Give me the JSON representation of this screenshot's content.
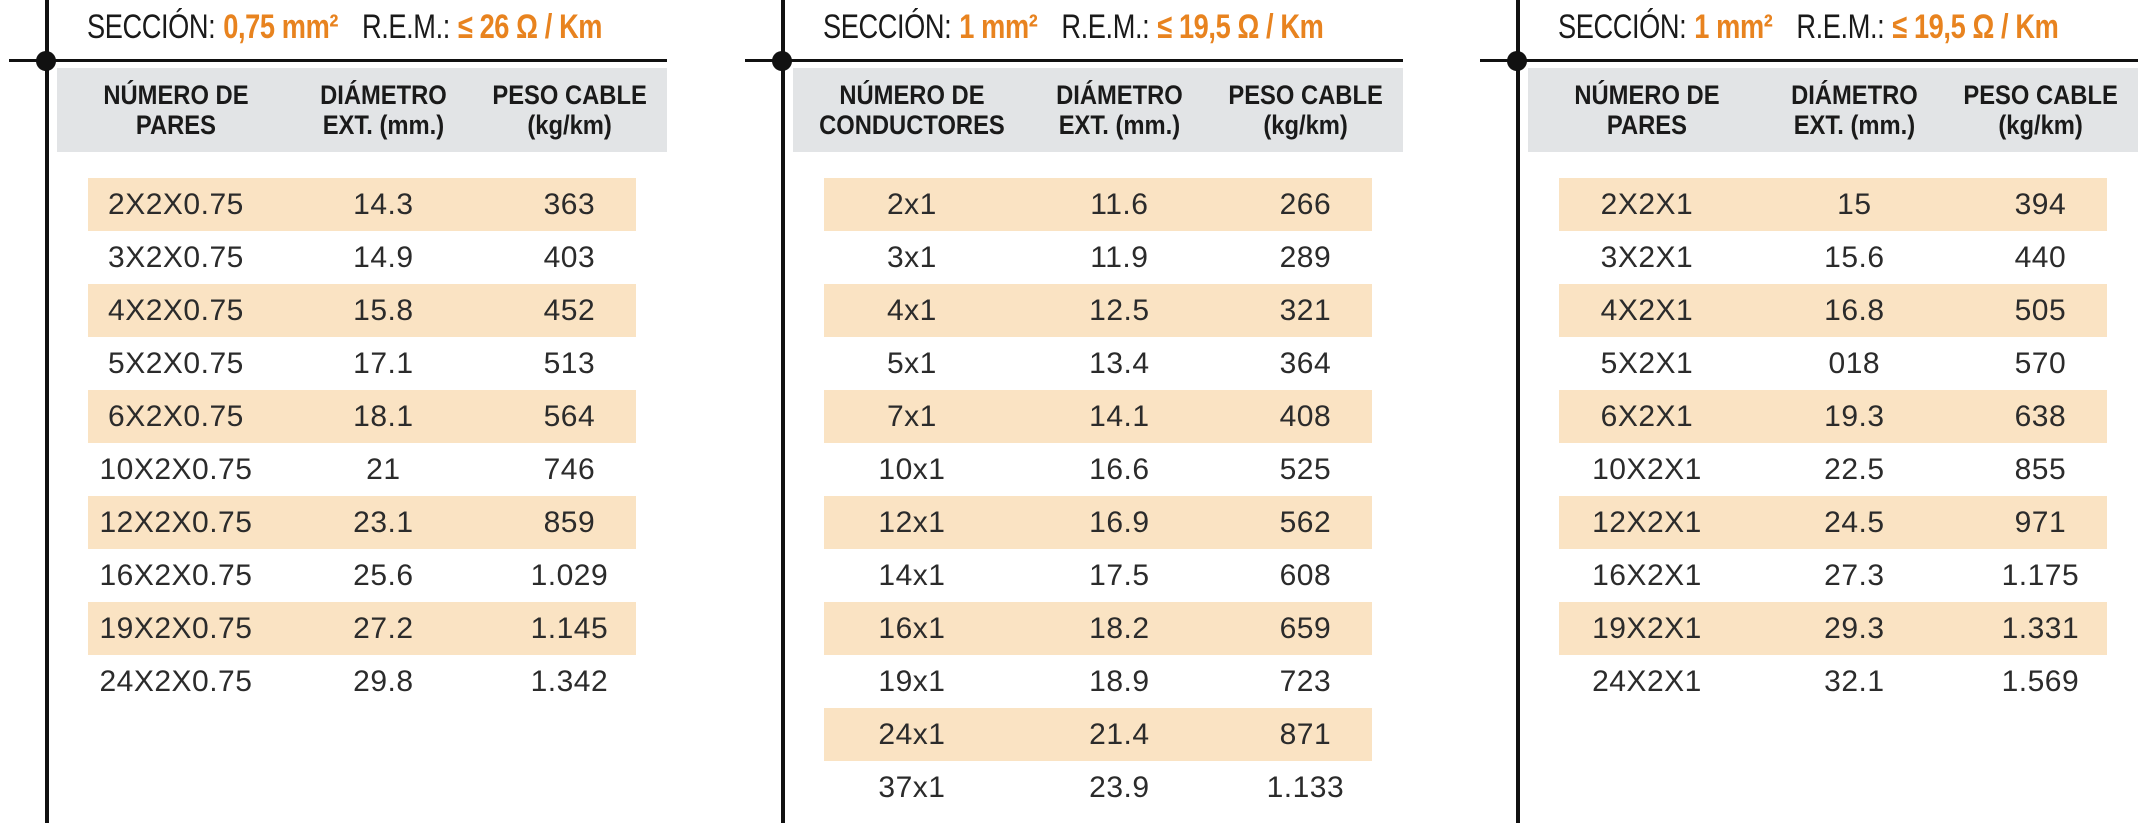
{
  "colors": {
    "orange": "#e8831f",
    "row_alt_bg": "#fae3c3",
    "header_bg": "#e2e4e6",
    "rule": "#111111"
  },
  "tables": [
    {
      "title": {
        "section_label": "SECCIÓN:",
        "section_value": "0,75 mm²",
        "rem_label": "R.E.M.:",
        "rem_value": "≤ 26 Ω / Km"
      },
      "columns": [
        {
          "line1": "NÚMERO DE",
          "line2": "PARES"
        },
        {
          "line1": "DIÁMETRO",
          "line2": "EXT. (mm.)"
        },
        {
          "line1": "PESO CABLE",
          "line2": "(kg/km)"
        }
      ],
      "rows": [
        [
          "2X2X0.75",
          "14.3",
          "363"
        ],
        [
          "3X2X0.75",
          "14.9",
          "403"
        ],
        [
          "4X2X0.75",
          "15.8",
          "452"
        ],
        [
          "5X2X0.75",
          "17.1",
          "513"
        ],
        [
          "6X2X0.75",
          "18.1",
          "564"
        ],
        [
          "10X2X0.75",
          "21",
          "746"
        ],
        [
          "12X2X0.75",
          "23.1",
          "859"
        ],
        [
          "16X2X0.75",
          "25.6",
          "1.029"
        ],
        [
          "19X2X0.75",
          "27.2",
          "1.145"
        ],
        [
          "24X2X0.75",
          "29.8",
          "1.342"
        ]
      ]
    },
    {
      "title": {
        "section_label": "SECCIÓN:",
        "section_value": "1 mm²",
        "rem_label": "R.E.M.:",
        "rem_value": "≤ 19,5 Ω / Km"
      },
      "columns": [
        {
          "line1": "NÚMERO DE",
          "line2": "CONDUCTORES"
        },
        {
          "line1": "DIÁMETRO",
          "line2": "EXT. (mm.)"
        },
        {
          "line1": "PESO CABLE",
          "line2": "(kg/km)"
        }
      ],
      "rows": [
        [
          "2x1",
          "11.6",
          "266"
        ],
        [
          "3x1",
          "11.9",
          "289"
        ],
        [
          "4x1",
          "12.5",
          "321"
        ],
        [
          "5x1",
          "13.4",
          "364"
        ],
        [
          "7x1",
          "14.1",
          "408"
        ],
        [
          "10x1",
          "16.6",
          "525"
        ],
        [
          "12x1",
          "16.9",
          "562"
        ],
        [
          "14x1",
          "17.5",
          "608"
        ],
        [
          "16x1",
          "18.2",
          "659"
        ],
        [
          "19x1",
          "18.9",
          "723"
        ],
        [
          "24x1",
          "21.4",
          "871"
        ],
        [
          "37x1",
          "23.9",
          "1.133"
        ]
      ]
    },
    {
      "title": {
        "section_label": "SECCIÓN:",
        "section_value": "1 mm²",
        "rem_label": "R.E.M.:",
        "rem_value": "≤ 19,5 Ω / Km"
      },
      "columns": [
        {
          "line1": "NÚMERO DE",
          "line2": "PARES"
        },
        {
          "line1": "DIÁMETRO",
          "line2": "EXT. (mm.)"
        },
        {
          "line1": "PESO CABLE",
          "line2": "(kg/km)"
        }
      ],
      "rows": [
        [
          "2X2X1",
          "15",
          "394"
        ],
        [
          "3X2X1",
          "15.6",
          "440"
        ],
        [
          "4X2X1",
          "16.8",
          "505"
        ],
        [
          "5X2X1",
          "018",
          "570"
        ],
        [
          "6X2X1",
          "19.3",
          "638"
        ],
        [
          "10X2X1",
          "22.5",
          "855"
        ],
        [
          "12X2X1",
          "24.5",
          "971"
        ],
        [
          "16X2X1",
          "27.3",
          "1.175"
        ],
        [
          "19X2X1",
          "29.3",
          "1.331"
        ],
        [
          "24X2X1",
          "32.1",
          "1.569"
        ]
      ]
    }
  ]
}
